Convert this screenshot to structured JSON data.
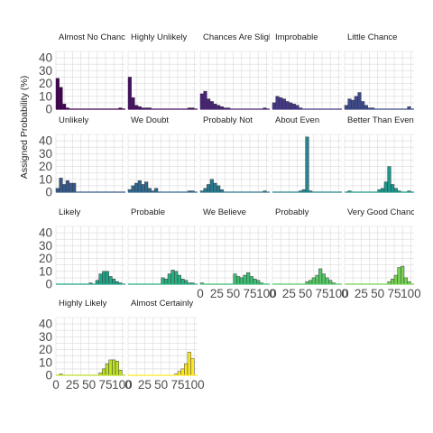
{
  "chart_data": {
    "type": "bar",
    "ylabel": "Assigned Probability (%)",
    "xlabel": "",
    "xlim": [
      0,
      100
    ],
    "ylim": [
      0,
      45
    ],
    "y_ticks": [
      0,
      10,
      20,
      30,
      40
    ],
    "x_ticks": [
      0,
      25,
      50,
      75,
      100
    ],
    "x_tick_labels": [
      "0",
      "25",
      "50",
      "75",
      "100"
    ],
    "bin_width": 5,
    "bin_starts": [
      0,
      5,
      10,
      15,
      20,
      25,
      30,
      35,
      40,
      45,
      50,
      55,
      60,
      65,
      70,
      75,
      80,
      85,
      90,
      95
    ],
    "grid": true,
    "facets": [
      {
        "label": "Almost No Chance",
        "color": "#440154",
        "values": [
          24,
          17,
          4,
          1,
          0,
          0,
          0,
          0,
          0,
          0,
          0,
          0,
          0,
          0,
          0,
          0,
          0,
          0,
          0,
          1
        ]
      },
      {
        "label": "Highly Unlikely",
        "color": "#471164",
        "values": [
          25,
          9,
          3,
          2,
          1,
          1,
          1,
          0,
          0,
          0,
          0,
          0,
          0,
          0,
          0,
          0,
          0,
          0,
          1,
          1
        ]
      },
      {
        "label": "Chances Are Slight",
        "color": "#482475",
        "values": [
          12,
          14,
          8,
          6,
          4,
          3,
          2,
          1,
          1,
          0,
          0,
          0,
          0,
          0,
          0,
          0,
          0,
          0,
          0,
          1
        ]
      },
      {
        "label": "Improbable",
        "color": "#443983",
        "values": [
          5,
          10,
          9,
          8,
          6,
          5,
          4,
          3,
          1,
          0,
          0,
          0,
          0,
          0,
          0,
          0,
          0,
          0,
          0,
          0
        ]
      },
      {
        "label": "Little Chance",
        "color": "#3e4a89",
        "values": [
          3,
          8,
          7,
          10,
          13,
          6,
          3,
          1,
          1,
          0,
          0,
          0,
          0,
          0,
          0,
          0,
          0,
          0,
          0,
          2
        ]
      },
      {
        "label": "Unlikely",
        "color": "#375a8c",
        "values": [
          3,
          11,
          6,
          9,
          7,
          7,
          0,
          0,
          0,
          0,
          0,
          0,
          0,
          0,
          0,
          0,
          0,
          0,
          0,
          0
        ]
      },
      {
        "label": "We Doubt",
        "color": "#30698e",
        "values": [
          2,
          5,
          7,
          9,
          6,
          8,
          3,
          1,
          3,
          0,
          0,
          0,
          0,
          0,
          0,
          0,
          0,
          0,
          1,
          1
        ]
      },
      {
        "label": "Probably Not",
        "color": "#2a788e",
        "values": [
          1,
          3,
          6,
          10,
          7,
          5,
          2,
          0,
          0,
          0,
          0,
          0,
          0,
          0,
          0,
          0,
          0,
          0,
          0,
          1
        ]
      },
      {
        "label": "About Even",
        "color": "#25858e",
        "values": [
          0,
          0,
          0,
          0,
          0,
          0,
          0,
          0,
          1,
          2,
          43,
          1,
          0,
          0,
          0,
          0,
          0,
          0,
          0,
          0
        ]
      },
      {
        "label": "Better Than Even",
        "color": "#1f968b",
        "values": [
          0,
          1,
          0,
          0,
          0,
          0,
          0,
          0,
          0,
          0,
          2,
          3,
          8,
          20,
          6,
          3,
          1,
          0,
          0,
          1
        ]
      },
      {
        "label": "Likely",
        "color": "#20a386",
        "values": [
          0,
          0,
          0,
          0,
          0,
          0,
          0,
          0,
          0,
          0,
          1,
          0,
          3,
          8,
          10,
          10,
          6,
          4,
          2,
          1
        ]
      },
      {
        "label": "Probable",
        "color": "#29af7f",
        "values": [
          0,
          0,
          0,
          0,
          0,
          0,
          0,
          0,
          0,
          0,
          5,
          4,
          8,
          11,
          10,
          7,
          4,
          3,
          1,
          1
        ]
      },
      {
        "label": "We Believe",
        "color": "#3dbc74",
        "values": [
          1,
          0,
          0,
          0,
          0,
          0,
          0,
          0,
          0,
          0,
          8,
          6,
          5,
          7,
          9,
          6,
          4,
          3,
          1,
          0
        ]
      },
      {
        "label": "Probably",
        "color": "#56c667",
        "values": [
          0,
          0,
          0,
          0,
          0,
          0,
          0,
          0,
          0,
          0,
          2,
          3,
          5,
          7,
          12,
          8,
          5,
          3,
          1,
          0
        ]
      },
      {
        "label": "Very Good Chance",
        "color": "#75d054",
        "values": [
          0,
          0,
          0,
          0,
          0,
          0,
          0,
          0,
          0,
          0,
          0,
          0,
          0,
          2,
          4,
          7,
          13,
          14,
          5,
          2
        ]
      },
      {
        "label": "Highly Likely",
        "color": "#bddf26",
        "values": [
          0,
          1,
          0,
          0,
          0,
          0,
          0,
          0,
          0,
          0,
          0,
          0,
          0,
          2,
          5,
          9,
          12,
          12,
          11,
          4
        ]
      },
      {
        "label": "Almost Certainly",
        "color": "#fde725",
        "values": [
          0,
          0,
          0,
          0,
          0,
          0,
          0,
          0,
          0,
          0,
          0,
          0,
          0,
          0,
          1,
          3,
          5,
          9,
          18,
          13
        ]
      }
    ]
  }
}
